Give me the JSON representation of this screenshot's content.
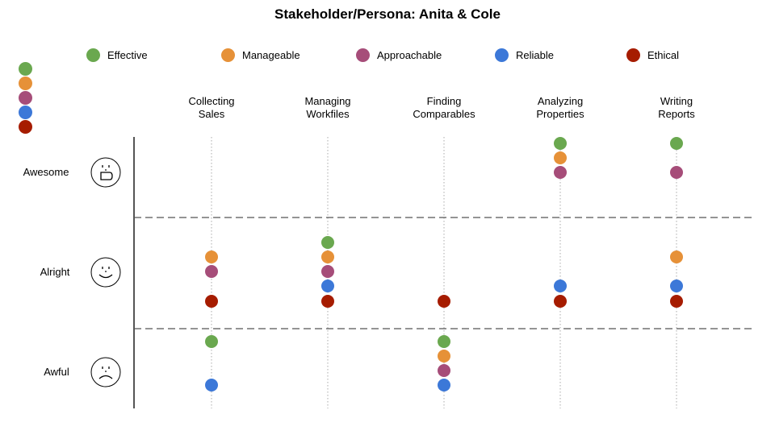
{
  "title": "Stakeholder/Persona: Anita & Cole",
  "legend": [
    {
      "label": "Effective",
      "color": "#6aa84f"
    },
    {
      "label": "Manageable",
      "color": "#e69138"
    },
    {
      "label": "Approachable",
      "color": "#a64d79"
    },
    {
      "label": "Reliable",
      "color": "#3c78d8"
    },
    {
      "label": "Ethical",
      "color": "#a61c00"
    }
  ],
  "columns": [
    {
      "line1": "Collecting",
      "line2": "Sales"
    },
    {
      "line1": "Managing",
      "line2": "Workfiles"
    },
    {
      "line1": "Finding",
      "line2": "Comparables"
    },
    {
      "line1": "Analyzing",
      "line2": "Properties"
    },
    {
      "line1": "Writing",
      "line2": "Reports"
    }
  ],
  "rows": [
    {
      "label": "Awesome",
      "face": "happy-face-icon"
    },
    {
      "label": "Alright",
      "face": "smile-face-icon"
    },
    {
      "label": "Awful",
      "face": "sad-face-icon"
    }
  ],
  "chart_data": {
    "type": "scatter",
    "title": "Stakeholder/Persona: Anita & Cole",
    "categories": [
      "Collecting Sales",
      "Managing Workfiles",
      "Finding Comparables",
      "Analyzing Properties",
      "Writing Reports"
    ],
    "levels": [
      "Awesome",
      "Alright",
      "Awful"
    ],
    "series": [
      {
        "name": "Effective",
        "color": "#6aa84f",
        "values": [
          "Awful",
          "Alright",
          "Awful",
          "Awesome",
          "Awesome"
        ]
      },
      {
        "name": "Manageable",
        "color": "#e69138",
        "values": [
          "Alright",
          "Alright",
          "Awful",
          "Awesome",
          "Alright"
        ]
      },
      {
        "name": "Approachable",
        "color": "#a64d79",
        "values": [
          "Alright",
          "Alright",
          "Awful",
          "Awesome",
          "Awesome"
        ]
      },
      {
        "name": "Reliable",
        "color": "#3c78d8",
        "values": [
          "Awful",
          "Alright",
          "Awful",
          "Alright",
          "Alright"
        ]
      },
      {
        "name": "Ethical",
        "color": "#a61c00",
        "values": [
          "Alright",
          "Alright",
          "Alright",
          "Alright",
          "Alright"
        ]
      }
    ]
  }
}
